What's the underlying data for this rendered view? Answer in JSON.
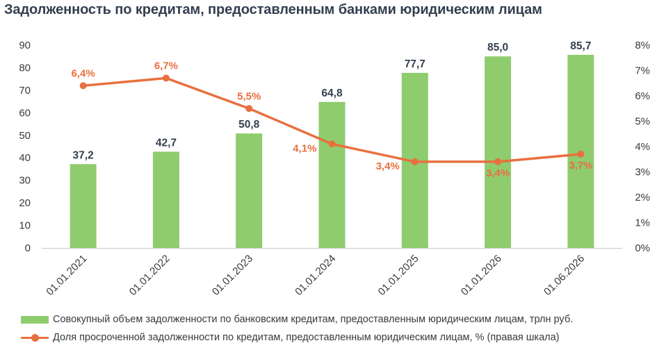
{
  "title": "Задолженность по кредитам, предоставленным банками юридическим лицам",
  "chart_data": {
    "type": "bar+line",
    "categories": [
      "01.01.2021",
      "01.01.2022",
      "01.01.2023",
      "01.01.2024",
      "01.01.2025",
      "01.01.2026",
      "01.06.2026"
    ],
    "series": [
      {
        "name": "Совокупный объем задолженности по банковским кредитам, предоставленным юридическим лицам, трлн руб.",
        "type": "bar",
        "axis": "left",
        "color": "#8fcc6e",
        "values": [
          37.2,
          42.7,
          50.8,
          64.8,
          77.7,
          85.0,
          85.7
        ],
        "labels": [
          "37,2",
          "42,7",
          "50,8",
          "64,8",
          "77,7",
          "85,0",
          "85,7"
        ]
      },
      {
        "name": "Доля просроченной задолженности по кредитам, предоставленным юридическим лицам, % (правая шкала)",
        "type": "line",
        "axis": "right",
        "color": "#e8703f",
        "values": [
          6.4,
          6.7,
          5.5,
          4.1,
          3.4,
          3.4,
          3.7
        ],
        "labels": [
          "6,4%",
          "6,7%",
          "5,5%",
          "4,1%",
          "3,4%",
          "3,4%",
          "3,7%"
        ]
      }
    ],
    "y_left": {
      "min": 0,
      "max": 90,
      "ticks": [
        "0",
        "10",
        "20",
        "30",
        "40",
        "50",
        "60",
        "70",
        "80",
        "90"
      ]
    },
    "y_right": {
      "min": 0,
      "max": 8,
      "ticks": [
        "0%",
        "1%",
        "2%",
        "3%",
        "4%",
        "5%",
        "6%",
        "7%",
        "8%"
      ]
    },
    "grid": false,
    "legend_position": "bottom"
  }
}
